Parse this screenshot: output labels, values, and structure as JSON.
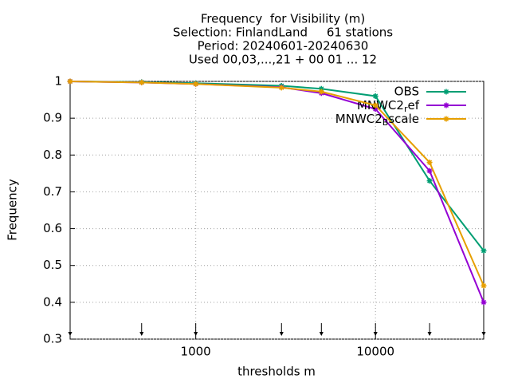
{
  "chart_data": {
    "type": "line",
    "title": [
      "Frequency  for Visibility (m)",
      "Selection: FinlandLand     61 stations",
      "Period: 20240601-20240630",
      "Used 00,03,...,21 + 00 01 ... 12"
    ],
    "xlabel": "thresholds m",
    "ylabel": "Frequency",
    "x": [
      200,
      500,
      1000,
      3000,
      5000,
      10000,
      20000,
      40000
    ],
    "series": [
      {
        "name": "OBS",
        "color": "#009e73",
        "values": [
          1.0,
          0.998,
          0.995,
          0.988,
          0.98,
          0.96,
          0.73,
          0.54
        ]
      },
      {
        "name": "MNWC2_ref",
        "color": "#9400d3",
        "values": [
          1.0,
          0.997,
          0.993,
          0.984,
          0.968,
          0.925,
          0.757,
          0.4
        ]
      },
      {
        "name": "MNWC2_Bscale",
        "color": "#e69f00",
        "values": [
          1.0,
          0.997,
          0.993,
          0.983,
          0.972,
          0.935,
          0.78,
          0.445
        ]
      }
    ],
    "xlim": [
      200,
      40000
    ],
    "xlog": true,
    "xticks": [
      1000,
      10000
    ],
    "ylim": [
      0.3,
      1
    ],
    "yticks": [
      0.3,
      0.4,
      0.5,
      0.6,
      0.7,
      0.8,
      0.9,
      1
    ],
    "grid": true,
    "legend": "top-right"
  }
}
